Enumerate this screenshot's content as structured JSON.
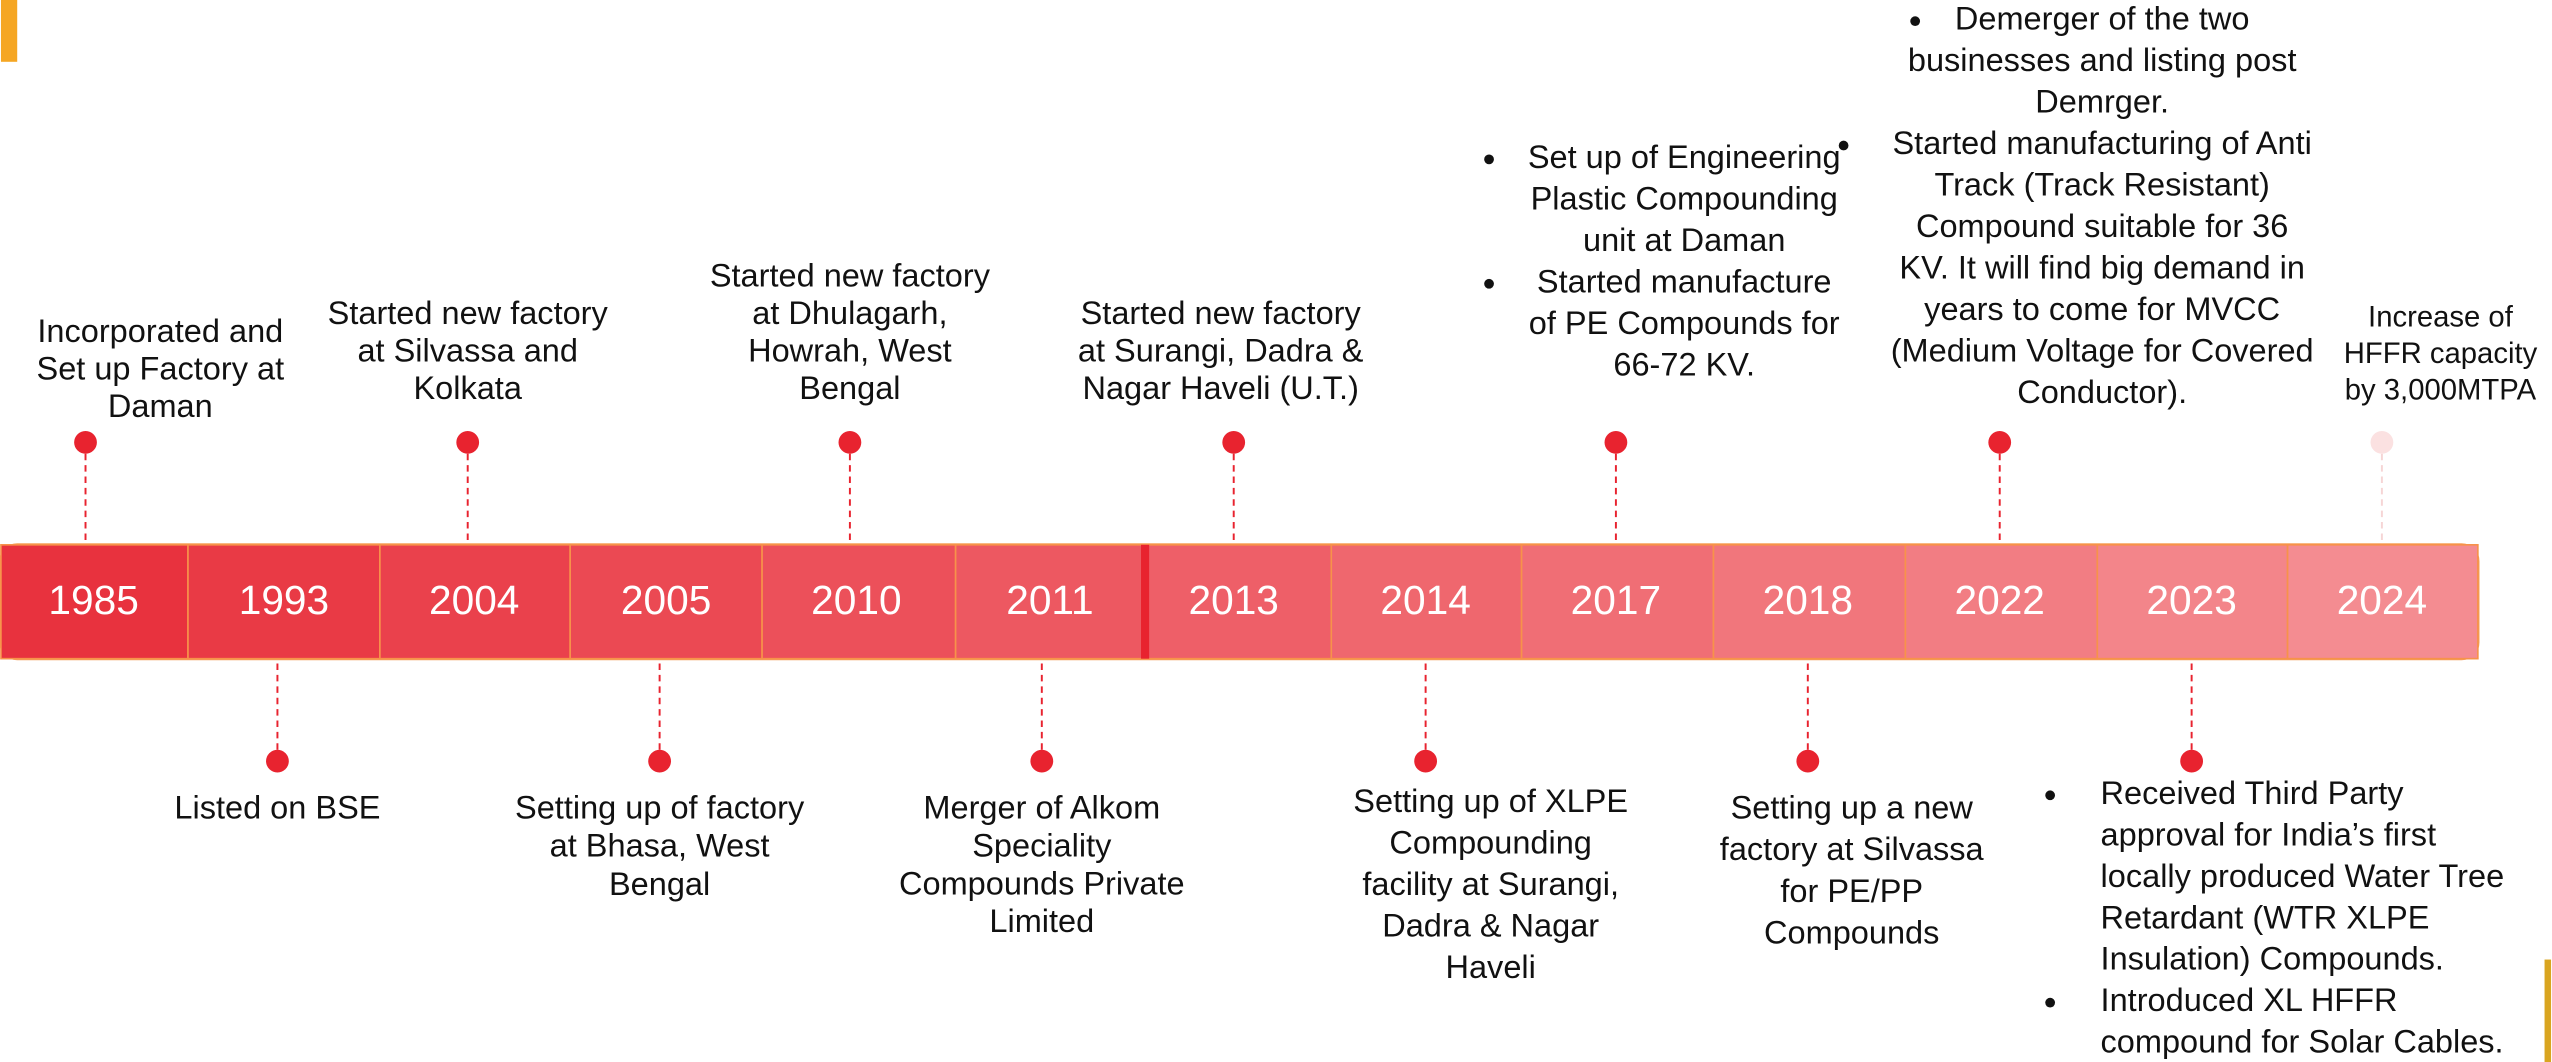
{
  "timeline": {
    "years": [
      "1985",
      "1993",
      "2004",
      "2005",
      "2010",
      "2011",
      "2013",
      "2014",
      "2017",
      "2018",
      "2022",
      "2023",
      "2024"
    ],
    "events": [
      {
        "lines": [
          "Incorporated and",
          "Set up Factory at",
          "Daman"
        ]
      },
      {
        "lines": [
          "Listed on BSE"
        ]
      },
      {
        "lines": [
          "Started new factory",
          "at Silvassa and",
          "Kolkata"
        ]
      },
      {
        "lines": [
          "Setting up of factory",
          "at Bhasa, West",
          "Bengal"
        ]
      },
      {
        "lines": [
          "Started new factory",
          "at Dhulagarh,",
          "Howrah, West",
          "Bengal"
        ]
      },
      {
        "lines": [
          "Merger of Alkom",
          "Speciality",
          "Compounds Private",
          "Limited"
        ]
      },
      {
        "lines": [
          "Started new   factory",
          "at Surangi, Dadra &",
          "Nagar Haveli (U.T.)"
        ]
      },
      {
        "lines": [
          "Setting up of XLPE",
          "Compounding",
          "facility at Surangi,",
          "Dadra & Nagar",
          "Haveli"
        ]
      },
      {
        "bullets": [
          [
            "Set up of Engineering",
            "Plastic Compounding",
            "unit at Daman"
          ],
          [
            "Started manufacture",
            "of PE Compounds for",
            "66-72 KV."
          ]
        ]
      },
      {
        "lines": [
          "Setting up a new",
          "factory at Silvassa",
          "for PE/PP",
          "Compounds"
        ]
      },
      {
        "bullets": [
          [
            "Demerger of the two",
            "businesses and listing post",
            "Demrger."
          ],
          [
            "Started manufacturing of Anti",
            "Track (Track Resistant)",
            "Compound suitable for 36",
            "KV. It will find big demand in",
            "years to come for MVCC",
            "(Medium Voltage for Covered",
            "Conductor)."
          ]
        ]
      },
      {
        "bullets": [
          [
            "Received Third Party",
            "approval for India’s first",
            "locally produced  Water Tree",
            "Retardant (WTR XLPE",
            "Insulation) Compounds."
          ],
          [
            "Introduced XL HFFR",
            "compound for Solar Cables."
          ]
        ]
      },
      {
        "lines": [
          "Increase of",
          "HFFR capacity",
          "by 3,000MTPA"
        ]
      }
    ]
  }
}
